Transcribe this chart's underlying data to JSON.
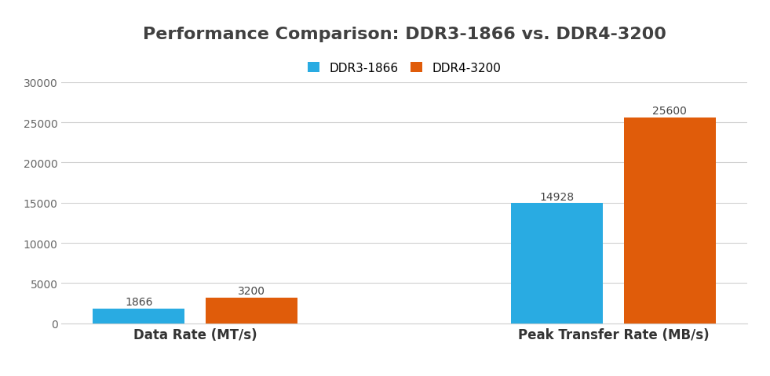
{
  "title": "Performance Comparison: DDR3-1866 vs. DDR4-3200",
  "categories": [
    "Data Rate (MT/s)",
    "Peak Transfer Rate (MB/s)"
  ],
  "ddr3_values": [
    1866,
    14928
  ],
  "ddr4_values": [
    3200,
    25600
  ],
  "ddr3_label": "DDR3-1866",
  "ddr4_label": "DDR4-3200",
  "ddr3_color": "#29ABE2",
  "ddr4_color": "#E05C0A",
  "ylim": [
    0,
    30000
  ],
  "yticks": [
    0,
    5000,
    10000,
    15000,
    20000,
    25000,
    30000
  ],
  "title_fontsize": 16,
  "legend_fontsize": 11,
  "xlabel_fontsize": 12,
  "bar_width": 0.22,
  "bar_gap": 0.05,
  "background_color": "#ffffff",
  "grid_color": "#d0d0d0",
  "title_color": "#404040",
  "tick_color": "#666666"
}
